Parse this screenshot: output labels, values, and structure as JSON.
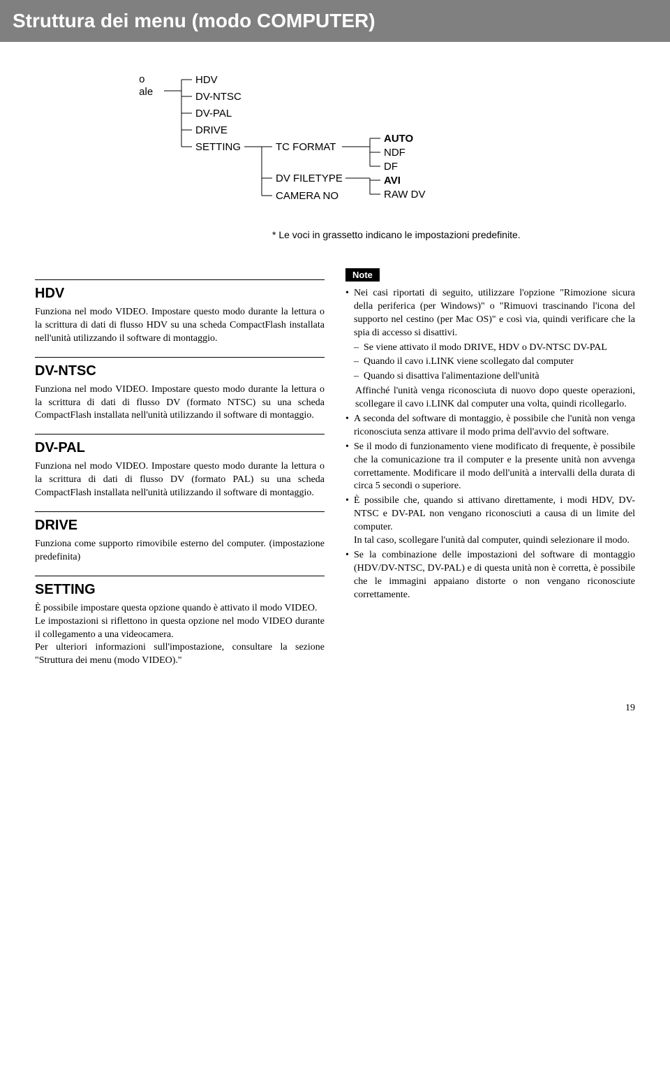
{
  "header": "Struttura dei menu (modo COMPUTER)",
  "diagram": {
    "root_label": "livello\nprincipale",
    "level1": [
      "HDV",
      "DV-NTSC",
      "DV-PAL",
      "DRIVE",
      "SETTING"
    ],
    "setting_children": [
      "TC FORMAT",
      "DV FILETYPE",
      "CAMERA NO"
    ],
    "tc_format_children": [
      "AUTO",
      "NDF",
      "DF"
    ],
    "dv_filetype_children": [
      "AVI",
      "RAW DV"
    ],
    "font_size": 15,
    "line_color": "#000000",
    "note": "* Le voci in grassetto indicano le impostazioni predefinite."
  },
  "left_sections": [
    {
      "title": "HDV",
      "text": "Funziona nel modo VIDEO. Impostare questo modo durante la lettura o la scrittura di dati di flusso HDV su una scheda CompactFlash installata nell'unità utilizzando il software di montaggio."
    },
    {
      "title": "DV-NTSC",
      "text": "Funziona nel modo VIDEO. Impostare questo modo durante la lettura o la scrittura di dati di flusso DV (formato NTSC) su una scheda CompactFlash installata nell'unità utilizzando il software di montaggio."
    },
    {
      "title": "DV-PAL",
      "text": "Funziona nel modo VIDEO. Impostare questo modo durante la lettura o la scrittura di dati di flusso DV (formato PAL) su una scheda CompactFlash installata nell'unità utilizzando il software di montaggio."
    },
    {
      "title": "DRIVE",
      "text": "Funziona come supporto rimovibile esterno del computer. (impostazione predefinita)"
    },
    {
      "title": "SETTING",
      "text": "È possibile impostare questa opzione quando è attivato il modo VIDEO.\nLe impostazioni si riflettono in questa opzione nel modo VIDEO durante il collegamento a una videocamera.\nPer ulteriori informazioni sull'impostazione, consultare la sezione \"Struttura dei menu (modo VIDEO).\""
    }
  ],
  "note_section": {
    "badge": "Note",
    "items": [
      {
        "text": "Nei casi riportati di seguito, utilizzare l'opzione \"Rimozione sicura della periferica (per Windows)\" o \"Rimuovi trascinando l'icona del supporto nel cestino (per Mac OS)\" e così via, quindi verificare che la spia di accesso si disattivi.",
        "sub": [
          "Se viene attivato il modo DRIVE, HDV o DV-NTSC DV-PAL",
          "Quando il cavo i.LINK viene scollegato dal computer",
          "Quando si disattiva l'alimentazione dell'unità"
        ],
        "after": "Affinché l'unità venga riconosciuta di nuovo dopo queste operazioni, scollegare il cavo i.LINK dal computer una volta, quindi ricollegarlo."
      },
      {
        "text": "A seconda del software di montaggio, è possibile che l'unità non venga riconosciuta senza attivare il modo prima dell'avvio del software."
      },
      {
        "text": "Se il modo di funzionamento viene modificato di frequente, è possibile che la comunicazione tra il computer e la presente unità non avvenga correttamente. Modificare il modo dell'unità a intervalli della durata di circa 5 secondi o superiore."
      },
      {
        "text": "È possibile che, quando si attivano direttamente, i modi HDV, DV-NTSC e DV-PAL non vengano riconosciuti a causa di un limite del computer.\nIn tal caso, scollegare l'unità dal computer, quindi selezionare il modo."
      },
      {
        "text": "Se la combinazione delle impostazioni del software di montaggio (HDV/DV-NTSC, DV-PAL) e di questa unità non è corretta, è possibile che le immagini appaiano distorte o non vengano riconosciute correttamente."
      }
    ]
  },
  "page_number": "19"
}
